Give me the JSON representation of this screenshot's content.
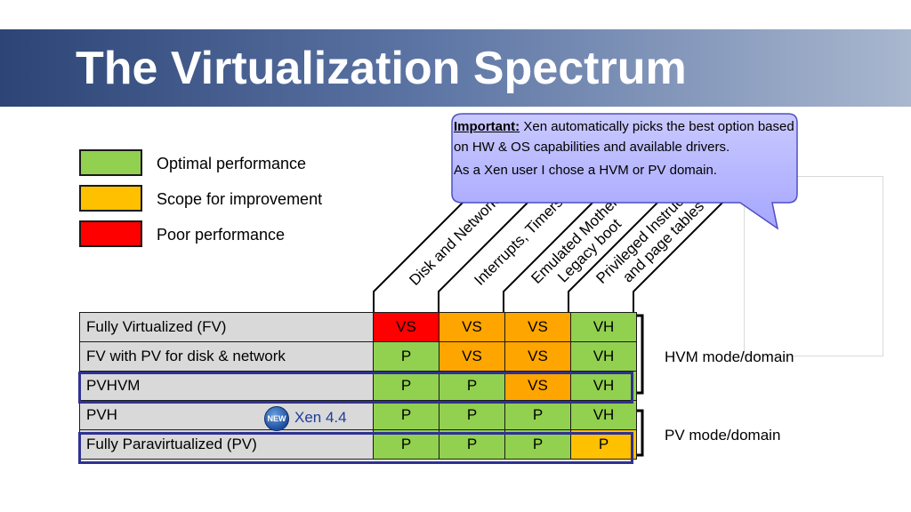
{
  "title": "The Virtualization Spectrum",
  "legend": [
    {
      "label": "Optimal performance",
      "color": "#92d050"
    },
    {
      "label": "Scope for improvement",
      "color": "#ffc000"
    },
    {
      "label": "Poor performance",
      "color": "#ff0000"
    }
  ],
  "callout": {
    "important_label": "Important:",
    "line1": "Xen automatically picks the best option based on HW & OS capabilities and available drivers.",
    "line2": "As a Xen user I chose a HVM or PV domain."
  },
  "columns": [
    {
      "line1": "Disk and Network",
      "line2": ""
    },
    {
      "line1": "Interrupts, Timers",
      "line2": ""
    },
    {
      "line1": "Emulated Motherboard,",
      "line2": "Legacy boot"
    },
    {
      "line1": "Privileged Instructions",
      "line2": "and page tables"
    }
  ],
  "rows": [
    {
      "label": "Fully Virtualized (FV)",
      "cells": [
        "VS",
        "VS",
        "VS",
        "VH"
      ]
    },
    {
      "label": "FV with PV for disk & network",
      "cells": [
        "P",
        "VS",
        "VS",
        "VH"
      ]
    },
    {
      "label": "PVHVM",
      "cells": [
        "P",
        "P",
        "VS",
        "VH"
      ]
    },
    {
      "label": "PVH",
      "cells": [
        "P",
        "P",
        "P",
        "VH"
      ]
    },
    {
      "label": "Fully Paravirtualized (PV)",
      "cells": [
        "P",
        "P",
        "P",
        "P"
      ]
    }
  ],
  "cell_colors": [
    [
      "#ff0000",
      "#ffa500",
      "#ffa500",
      "#92d050"
    ],
    [
      "#92d050",
      "#ffa500",
      "#ffa500",
      "#92d050"
    ],
    [
      "#92d050",
      "#92d050",
      "#ffa500",
      "#92d050"
    ],
    [
      "#92d050",
      "#92d050",
      "#92d050",
      "#92d050"
    ],
    [
      "#92d050",
      "#92d050",
      "#92d050",
      "#ffc000"
    ]
  ],
  "new_badge": "NEW",
  "pvh_version": "Xen 4.4",
  "hvm_mode": "HVM mode/domain",
  "pv_mode": "PV mode/domain",
  "highlight_color": "#2e3192"
}
